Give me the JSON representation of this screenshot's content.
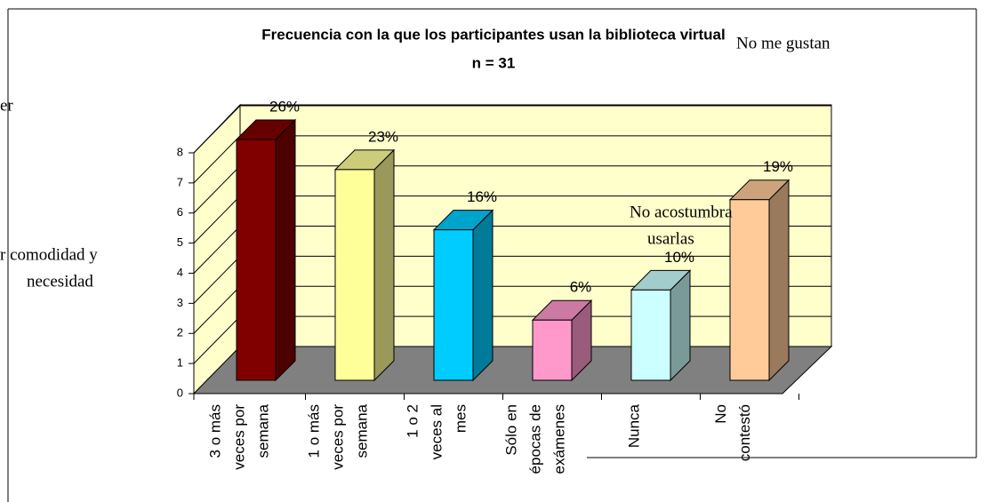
{
  "chart_data": {
    "type": "bar3d",
    "title": "Frecuencia con la que los participantes usan la biblioteca virtual",
    "subtitle": "n = 31",
    "categories": [
      [
        "3 o más",
        "veces por",
        "semana"
      ],
      [
        "1 o más",
        "veces por",
        "semana"
      ],
      [
        "1 o 2",
        "veces al",
        "mes"
      ],
      [
        "Sólo en",
        "épocas de",
        "exámenes"
      ],
      [
        "Nunca"
      ],
      [
        "No",
        "contestó"
      ]
    ],
    "values": [
      8,
      7,
      5,
      2,
      3,
      6
    ],
    "value_labels": [
      "26%",
      "23%",
      "16%",
      "6%",
      "10%",
      "19%"
    ],
    "colors": [
      "#800000",
      "#ffff99",
      "#00ccff",
      "#ff99cc",
      "#ccffff",
      "#ffcc99"
    ],
    "ylim": [
      0,
      8
    ],
    "yticks": [
      0,
      1,
      2,
      3,
      4,
      5,
      6,
      7,
      8
    ],
    "grid": true,
    "annotations": [
      "No me gustan",
      "er",
      "r comodidad y",
      "necesidad",
      "No acostumbra",
      "usarlas"
    ]
  }
}
